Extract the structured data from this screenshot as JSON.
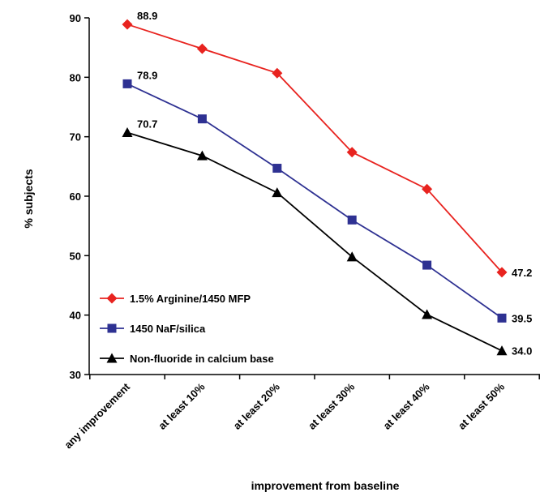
{
  "chart_data": {
    "type": "line",
    "title": "",
    "xlabel": "improvement from baseline",
    "ylabel": "% subjects",
    "ylim": [
      30,
      90
    ],
    "yticks": [
      30,
      40,
      50,
      60,
      70,
      80,
      90
    ],
    "categories": [
      "any improvement",
      "at least 10%",
      "at least 20%",
      "at least 30%",
      "at least 40%",
      "at least 50%"
    ],
    "grid": false,
    "legend_position": "bottom-left",
    "series": [
      {
        "name": "1.5% Arginine/1450 MFP",
        "color": "#e8231f",
        "marker": "diamond",
        "values": [
          88.9,
          84.8,
          80.7,
          67.4,
          61.2,
          47.2
        ],
        "labels": [
          "88.9",
          "",
          "",
          "",
          "",
          "47.2"
        ]
      },
      {
        "name": "1450 NaF/silica",
        "color": "#2e3192",
        "marker": "square",
        "values": [
          78.9,
          73.0,
          64.7,
          56.0,
          48.4,
          39.5
        ],
        "labels": [
          "78.9",
          "",
          "",
          "",
          "",
          "39.5"
        ]
      },
      {
        "name": "Non-fluoride in calcium base",
        "color": "#000000",
        "marker": "triangle",
        "values": [
          70.7,
          66.8,
          60.6,
          49.8,
          40.1,
          34.0
        ],
        "labels": [
          "70.7",
          "",
          "",
          "",
          "",
          "34.0"
        ]
      }
    ]
  }
}
